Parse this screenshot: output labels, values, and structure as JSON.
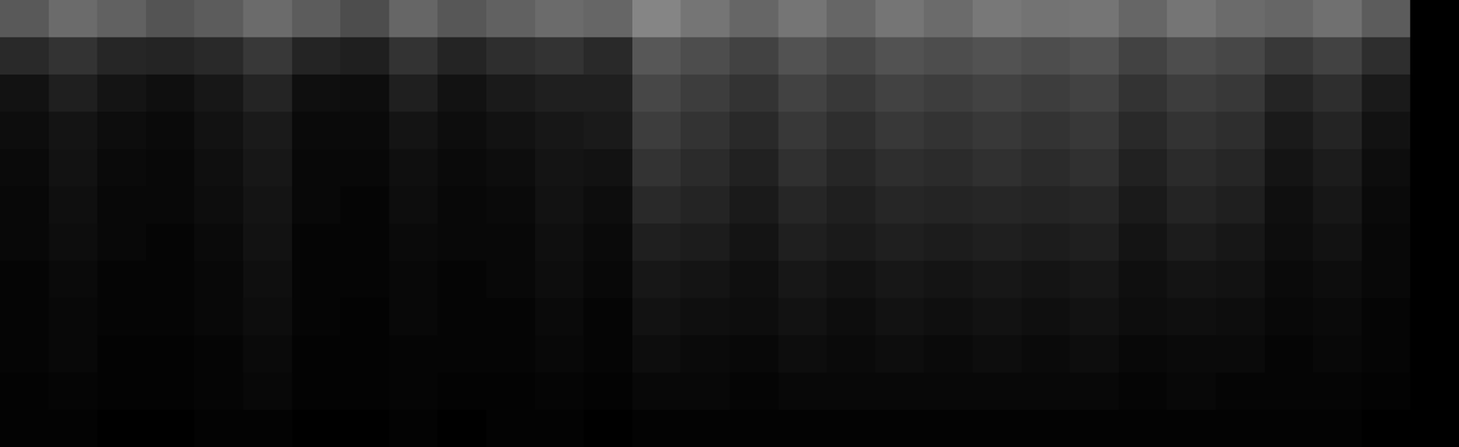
{
  "chart_data": {
    "type": "heatmap",
    "tick_labels": false,
    "grid": false,
    "zlim": [
      0,
      1
    ],
    "colorscale": [
      "#000000",
      "#ffffff"
    ],
    "cells": [
      [
        0.35,
        0.42,
        0.38,
        0.33,
        0.36,
        0.42,
        0.36,
        0.3,
        0.4,
        0.34,
        0.38,
        0.42,
        0.4,
        0.52,
        0.46,
        0.4,
        0.46,
        0.4,
        0.46,
        0.42,
        0.47,
        0.45,
        0.46,
        0.4,
        0.46,
        0.42,
        0.4,
        0.44,
        0.36,
        0
      ],
      [
        0.16,
        0.2,
        0.15,
        0.14,
        0.16,
        0.22,
        0.14,
        0.12,
        0.2,
        0.14,
        0.18,
        0.2,
        0.16,
        0.34,
        0.3,
        0.26,
        0.32,
        0.28,
        0.32,
        0.3,
        0.32,
        0.3,
        0.32,
        0.26,
        0.3,
        0.28,
        0.22,
        0.26,
        0.18,
        0
      ],
      [
        0.07,
        0.12,
        0.08,
        0.06,
        0.09,
        0.14,
        0.06,
        0.05,
        0.12,
        0.07,
        0.1,
        0.12,
        0.12,
        0.28,
        0.24,
        0.2,
        0.26,
        0.22,
        0.26,
        0.24,
        0.26,
        0.24,
        0.26,
        0.2,
        0.24,
        0.22,
        0.14,
        0.18,
        0.1,
        0
      ],
      [
        0.05,
        0.08,
        0.05,
        0.04,
        0.07,
        0.1,
        0.04,
        0.04,
        0.08,
        0.05,
        0.07,
        0.09,
        0.1,
        0.24,
        0.2,
        0.16,
        0.22,
        0.18,
        0.22,
        0.2,
        0.22,
        0.2,
        0.22,
        0.16,
        0.2,
        0.18,
        0.1,
        0.14,
        0.07,
        0
      ],
      [
        0.04,
        0.07,
        0.04,
        0.03,
        0.06,
        0.09,
        0.03,
        0.03,
        0.06,
        0.04,
        0.05,
        0.08,
        0.07,
        0.2,
        0.17,
        0.13,
        0.19,
        0.15,
        0.18,
        0.17,
        0.19,
        0.17,
        0.19,
        0.13,
        0.17,
        0.15,
        0.08,
        0.11,
        0.05,
        0
      ],
      [
        0.03,
        0.06,
        0.03,
        0.03,
        0.05,
        0.08,
        0.03,
        0.02,
        0.05,
        0.03,
        0.04,
        0.07,
        0.05,
        0.16,
        0.14,
        0.1,
        0.15,
        0.12,
        0.15,
        0.14,
        0.15,
        0.14,
        0.15,
        0.1,
        0.14,
        0.12,
        0.06,
        0.09,
        0.04,
        0
      ],
      [
        0.03,
        0.05,
        0.03,
        0.02,
        0.04,
        0.07,
        0.02,
        0.02,
        0.04,
        0.03,
        0.03,
        0.06,
        0.04,
        0.12,
        0.11,
        0.08,
        0.12,
        0.1,
        0.12,
        0.11,
        0.12,
        0.11,
        0.12,
        0.08,
        0.11,
        0.09,
        0.05,
        0.07,
        0.03,
        0
      ],
      [
        0.02,
        0.04,
        0.02,
        0.02,
        0.03,
        0.06,
        0.02,
        0.02,
        0.03,
        0.02,
        0.03,
        0.05,
        0.03,
        0.09,
        0.08,
        0.06,
        0.09,
        0.07,
        0.09,
        0.08,
        0.09,
        0.08,
        0.09,
        0.06,
        0.08,
        0.07,
        0.04,
        0.05,
        0.03,
        0
      ],
      [
        0.02,
        0.03,
        0.02,
        0.02,
        0.03,
        0.05,
        0.02,
        0.01,
        0.03,
        0.02,
        0.02,
        0.04,
        0.02,
        0.07,
        0.06,
        0.05,
        0.07,
        0.05,
        0.07,
        0.06,
        0.07,
        0.06,
        0.07,
        0.05,
        0.06,
        0.05,
        0.03,
        0.04,
        0.02,
        0
      ],
      [
        0.02,
        0.03,
        0.01,
        0.01,
        0.02,
        0.04,
        0.01,
        0.01,
        0.02,
        0.02,
        0.02,
        0.03,
        0.02,
        0.05,
        0.04,
        0.03,
        0.05,
        0.04,
        0.05,
        0.04,
        0.05,
        0.04,
        0.05,
        0.03,
        0.04,
        0.04,
        0.02,
        0.03,
        0.02,
        0
      ],
      [
        0.01,
        0.02,
        0.01,
        0.01,
        0.02,
        0.03,
        0.01,
        0.01,
        0.02,
        0.01,
        0.01,
        0.02,
        0.01,
        0.03,
        0.03,
        0.02,
        0.03,
        0.03,
        0.03,
        0.03,
        0.03,
        0.03,
        0.03,
        0.02,
        0.03,
        0.02,
        0.02,
        0.02,
        0.01,
        0
      ],
      [
        0.01,
        0.01,
        0,
        0,
        0.01,
        0.01,
        0,
        0,
        0.01,
        0,
        0.01,
        0.01,
        0,
        0.01,
        0.01,
        0.01,
        0.01,
        0.01,
        0.01,
        0.01,
        0.01,
        0.01,
        0.01,
        0.01,
        0.01,
        0.01,
        0.01,
        0.01,
        0,
        0
      ]
    ]
  }
}
